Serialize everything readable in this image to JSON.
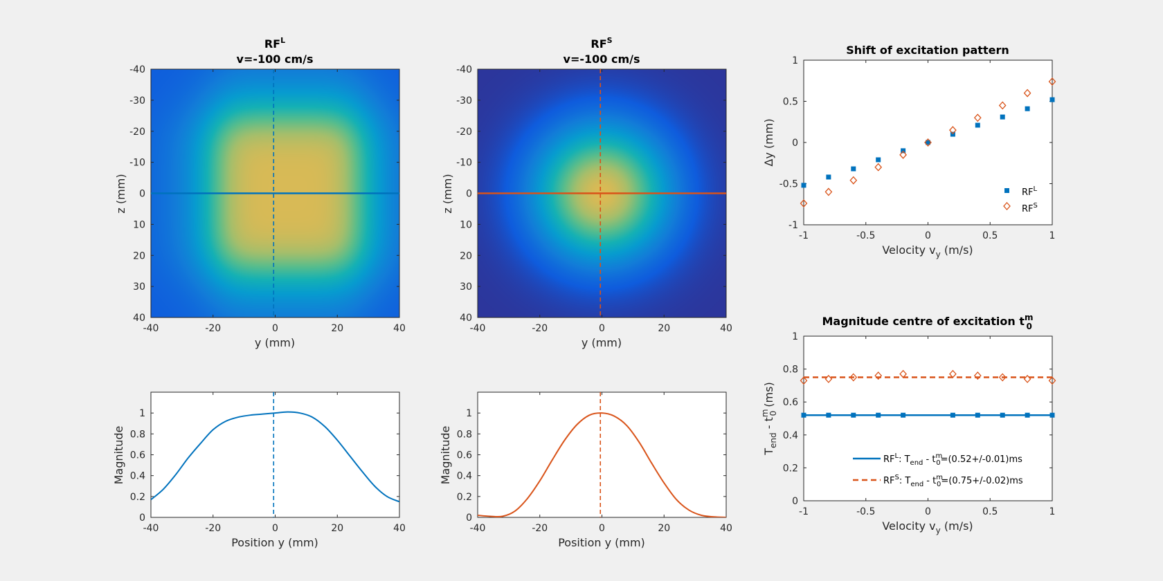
{
  "chart_data": [
    {
      "id": "map-long",
      "type": "heatmap",
      "title_main": "RF",
      "title_sup": "L",
      "title_line2": "v=-100 cm/s",
      "xlabel": "y (mm)",
      "ylabel": "z (mm)",
      "xlim": [
        -40,
        40
      ],
      "ylim": [
        -40,
        40
      ],
      "y_axis_reversed": true,
      "xticks": [
        -40,
        -20,
        0,
        20,
        40
      ],
      "yticks": [
        -40,
        -30,
        -20,
        -10,
        0,
        10,
        20,
        30,
        40
      ],
      "colormap": "parula",
      "profile": "wide plateau, centre shifted to y=+4 mm",
      "crosshair": {
        "vertical_y": -0.5,
        "horizontal_z": 0,
        "color": "#0072bd"
      }
    },
    {
      "id": "map-short",
      "type": "heatmap",
      "title_main": "RF",
      "title_sup": "S",
      "title_line2": "v=-100 cm/s",
      "xlabel": "y (mm)",
      "ylabel": "z (mm)",
      "xlim": [
        -40,
        40
      ],
      "ylim": [
        -40,
        40
      ],
      "y_axis_reversed": true,
      "xticks": [
        -40,
        -20,
        0,
        20,
        40
      ],
      "yticks": [
        -40,
        -30,
        -20,
        -10,
        0,
        10,
        20,
        30,
        40
      ],
      "colormap": "parula",
      "profile": "compact gaussian-like, centre at y=0 mm",
      "crosshair": {
        "vertical_y": -0.5,
        "horizontal_z": 0,
        "color": "#d95319"
      }
    },
    {
      "id": "profile-long",
      "type": "line",
      "xlabel": "Position y (mm)",
      "ylabel": "Magnitude",
      "xlim": [
        -40,
        40
      ],
      "ylim": [
        0,
        1.2
      ],
      "xticks": [
        -40,
        -20,
        0,
        20,
        40
      ],
      "yticks": [
        0,
        0.2,
        0.4,
        0.6,
        0.8,
        1
      ],
      "color": "#0072bd",
      "vline_x": -0.5,
      "x": [
        -40,
        -36,
        -32,
        -28,
        -24,
        -20,
        -16,
        -12,
        -8,
        -4,
        0,
        4,
        8,
        12,
        16,
        20,
        24,
        28,
        32,
        36,
        40
      ],
      "values": [
        0.17,
        0.27,
        0.41,
        0.57,
        0.71,
        0.84,
        0.92,
        0.96,
        0.98,
        0.99,
        1.0,
        1.01,
        1.0,
        0.96,
        0.87,
        0.74,
        0.59,
        0.44,
        0.3,
        0.2,
        0.15
      ]
    },
    {
      "id": "profile-short",
      "type": "line",
      "xlabel": "Position y (mm)",
      "ylabel": "Magnitude",
      "xlim": [
        -40,
        40
      ],
      "ylim": [
        0,
        1.2
      ],
      "xticks": [
        -40,
        -20,
        0,
        20,
        40
      ],
      "yticks": [
        0,
        0.2,
        0.4,
        0.6,
        0.8,
        1
      ],
      "color": "#d95319",
      "vline_x": -0.5,
      "x": [
        -40,
        -36,
        -32,
        -28,
        -24,
        -20,
        -16,
        -12,
        -8,
        -4,
        0,
        4,
        8,
        12,
        16,
        20,
        24,
        28,
        32,
        36,
        40
      ],
      "values": [
        0.02,
        0.01,
        0.01,
        0.06,
        0.18,
        0.35,
        0.55,
        0.74,
        0.89,
        0.98,
        1.0,
        0.97,
        0.88,
        0.72,
        0.52,
        0.33,
        0.17,
        0.07,
        0.02,
        0.005,
        0.0
      ]
    },
    {
      "id": "shift",
      "type": "scatter",
      "title": "Shift of excitation pattern",
      "xlabel_main": "Velocity v",
      "xlabel_sub": "y",
      "xlabel_tail": " (m/s)",
      "ylabel": "Δy (mm)",
      "xlim": [
        -1,
        1
      ],
      "ylim": [
        -1,
        1
      ],
      "xticks": [
        -1,
        -0.5,
        0,
        0.5,
        1
      ],
      "yticks": [
        -1,
        -0.5,
        0,
        0.5,
        1
      ],
      "x": [
        -1,
        -0.8,
        -0.6,
        -0.4,
        -0.2,
        0,
        0.2,
        0.4,
        0.6,
        0.8,
        1
      ],
      "series": [
        {
          "label_main": "RF",
          "label_sup": "L",
          "marker": "square",
          "color": "#0072bd",
          "values": [
            -0.52,
            -0.42,
            -0.32,
            -0.21,
            -0.1,
            0.0,
            0.1,
            0.21,
            0.31,
            0.41,
            0.52
          ]
        },
        {
          "label_main": "RF",
          "label_sup": "S",
          "marker": "diamond",
          "color": "#d95319",
          "values": [
            -0.74,
            -0.6,
            -0.46,
            -0.3,
            -0.15,
            0.0,
            0.15,
            0.3,
            0.45,
            0.6,
            0.74
          ]
        }
      ],
      "legend_position": "bottom-right"
    },
    {
      "id": "magnitude-centre",
      "type": "scatter",
      "title_main": "Magnitude centre of excitation t",
      "title_sub": "0",
      "title_sup": "m",
      "xlabel_main": "Velocity v",
      "xlabel_sub": "y",
      "xlabel_tail": " (m/s)",
      "ylabel": "T_end - t_0^m (ms)",
      "ylabel_parts": {
        "a": "T",
        "a_sub": "end",
        "b": " - t",
        "b_sub": "0",
        "b_sup": "m",
        "tail": " (ms)"
      },
      "xlim": [
        -1,
        1
      ],
      "ylim": [
        0,
        1
      ],
      "xticks": [
        -1,
        -0.5,
        0,
        0.5,
        1
      ],
      "yticks": [
        0,
        0.2,
        0.4,
        0.6,
        0.8,
        1
      ],
      "x": [
        -1,
        -0.8,
        -0.6,
        -0.4,
        -0.2,
        0.2,
        0.4,
        0.6,
        0.8,
        1
      ],
      "series": [
        {
          "marker": "square",
          "color": "#0072bd",
          "fit": 0.52,
          "fit_style": "solid",
          "values": [
            0.52,
            0.52,
            0.52,
            0.52,
            0.52,
            0.52,
            0.52,
            0.52,
            0.52,
            0.52
          ],
          "legend": {
            "rf": "RF",
            "rf_sup": "L",
            "mid": ": T",
            "mid_sub": "end",
            "mid2": " - t",
            "t_sub": "0",
            "t_sup": "m",
            "tail": "=(0.52+/-0.01)ms"
          }
        },
        {
          "marker": "diamond",
          "color": "#d95319",
          "fit": 0.75,
          "fit_style": "dashed",
          "values": [
            0.73,
            0.74,
            0.75,
            0.76,
            0.77,
            0.77,
            0.76,
            0.75,
            0.74,
            0.73
          ],
          "legend": {
            "rf": "RF",
            "rf_sup": "S",
            "mid": ": T",
            "mid_sub": "end",
            "mid2": " - t",
            "t_sub": "0",
            "t_sup": "m",
            "tail": "=(0.75+/-0.02)ms"
          }
        }
      ],
      "legend_position": "bottom-right"
    }
  ]
}
